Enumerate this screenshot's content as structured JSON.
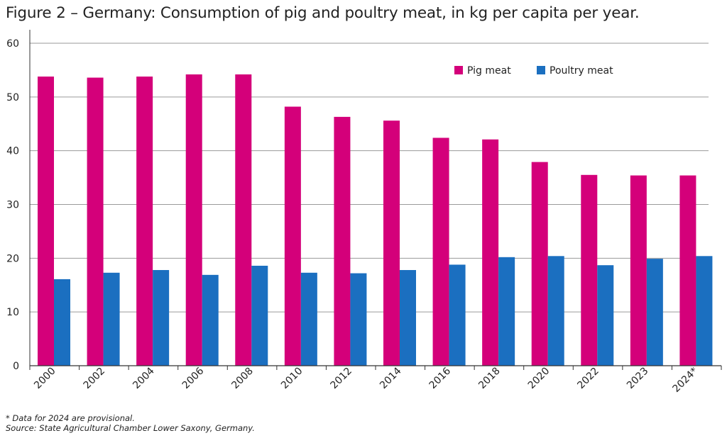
{
  "chart_data": {
    "type": "bar",
    "title": "Figure 2 – Germany: Consumption of pig and poultry meat, in kg per capita per year.",
    "xlabel": "",
    "ylabel": "",
    "categories": [
      "2000",
      "2002",
      "2004",
      "2006",
      "2008",
      "2010",
      "2012",
      "2014",
      "2016",
      "2018",
      "2020",
      "2022",
      "2023",
      "2024*"
    ],
    "series": [
      {
        "name": "Pig meat",
        "color": "#d4007a",
        "values": [
          53.8,
          53.6,
          53.8,
          54.2,
          54.2,
          48.2,
          46.3,
          45.6,
          42.4,
          42.1,
          37.9,
          35.5,
          35.4,
          35.4
        ]
      },
      {
        "name": "Poultry meat",
        "color": "#1b6fc0",
        "values": [
          16.1,
          17.3,
          17.8,
          16.9,
          18.6,
          17.3,
          17.2,
          17.8,
          18.8,
          20.2,
          20.4,
          18.7,
          19.9,
          20.4
        ]
      }
    ],
    "ylim": [
      0,
      60
    ],
    "yticks": [
      0,
      10,
      20,
      30,
      40,
      50,
      60
    ],
    "grid": true,
    "legend": "top-right",
    "notes": [
      "* Data for 2024 are provisional.",
      "Source: State Agricultural Chamber Lower Saxony, Germany."
    ]
  }
}
